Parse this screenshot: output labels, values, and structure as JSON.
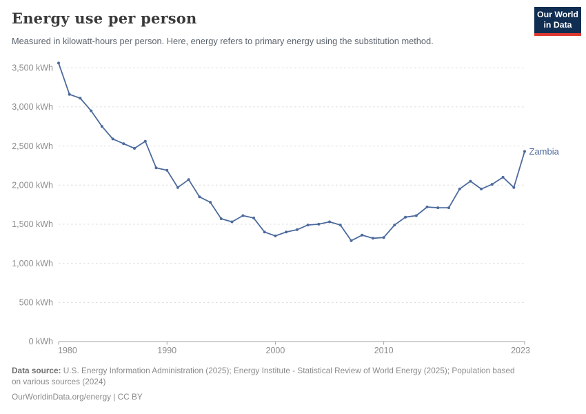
{
  "header": {
    "title": "Energy use per person",
    "subtitle": "Measured in kilowatt-hours per person. Here, energy refers to primary energy using the substitution method."
  },
  "logo": {
    "line1": "Our World",
    "line2": "in Data"
  },
  "chart_data": {
    "type": "line",
    "title": "Energy use per person",
    "unit": "kWh",
    "xlabel": "",
    "ylabel": "kilowatt-hours per person",
    "xlim": [
      1980,
      2023
    ],
    "ylim": [
      0,
      3500
    ],
    "grid": "horizontal-dashed",
    "legend_position": "end-of-line",
    "x_ticks": [
      "1980",
      "1990",
      "2000",
      "2010",
      "2023"
    ],
    "y_ticks": [
      0,
      500,
      1000,
      1500,
      2000,
      2500,
      3000,
      3500
    ],
    "y_tick_suffix": " kWh",
    "series": [
      {
        "name": "Zambia",
        "color": "#4c6a9c",
        "years": [
          1980,
          1981,
          1982,
          1983,
          1984,
          1985,
          1986,
          1987,
          1988,
          1989,
          1990,
          1991,
          1992,
          1993,
          1994,
          1995,
          1996,
          1997,
          1998,
          1999,
          2000,
          2001,
          2002,
          2003,
          2004,
          2005,
          2006,
          2007,
          2008,
          2009,
          2010,
          2011,
          2012,
          2013,
          2014,
          2015,
          2016,
          2017,
          2018,
          2019,
          2020,
          2021,
          2022,
          2023
        ],
        "values": [
          3560,
          3160,
          3110,
          2950,
          2750,
          2590,
          2530,
          2470,
          2560,
          2220,
          2190,
          1970,
          2070,
          1850,
          1780,
          1570,
          1530,
          1610,
          1580,
          1400,
          1350,
          1400,
          1430,
          1490,
          1500,
          1530,
          1490,
          1290,
          1360,
          1320,
          1330,
          1490,
          1590,
          1610,
          1720,
          1710,
          1710,
          1950,
          2050,
          1950,
          2010,
          2100,
          1970,
          2430
        ]
      }
    ]
  },
  "footer": {
    "source_label": "Data source:",
    "source_line1": " U.S. Energy Information Administration (2025); Energy Institute - Statistical Review of World Energy (2025); Population based",
    "source_line2": "on various sources (2024)",
    "license": "OurWorldinData.org/energy | CC BY"
  },
  "colors": {
    "line": "#4c6a9c",
    "axis": "#a3a3a3",
    "grid": "#dcdcdc",
    "tick_label": "#8c8c8c",
    "title": "#3a3a3a",
    "subtitle": "#5a626b",
    "footer": "#8a8a8a",
    "logo_bg": "#102d52",
    "logo_red": "#dc3830"
  }
}
